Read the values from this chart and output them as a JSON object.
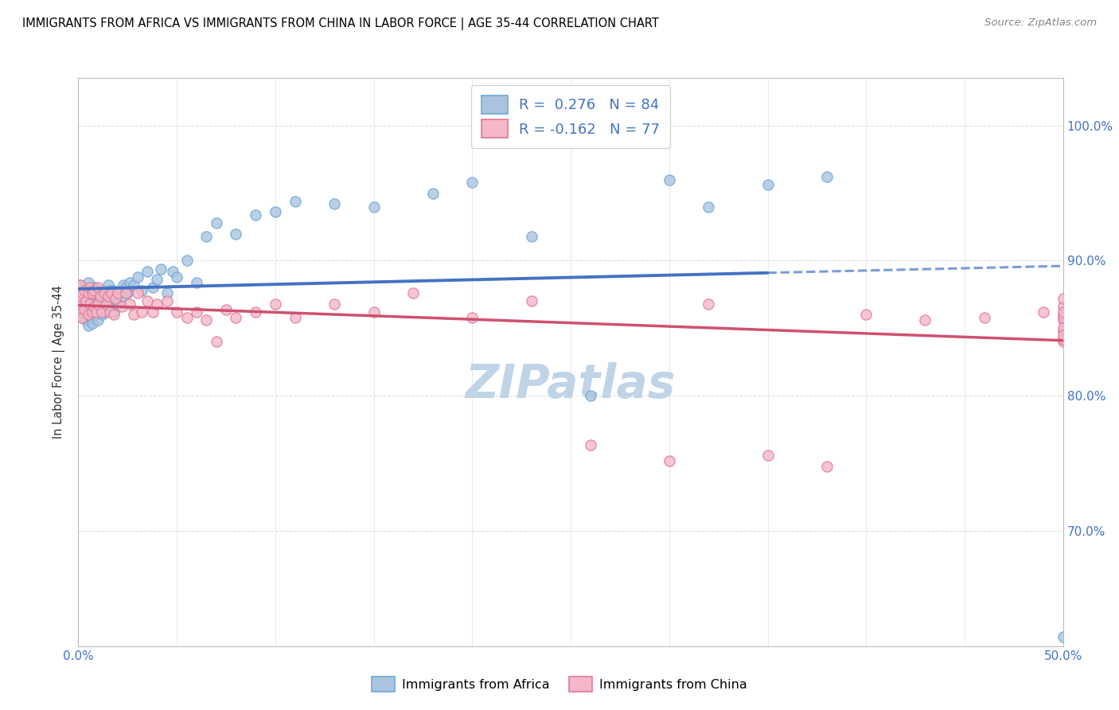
{
  "title": "IMMIGRANTS FROM AFRICA VS IMMIGRANTS FROM CHINA IN LABOR FORCE | AGE 35-44 CORRELATION CHART",
  "source_text": "Source: ZipAtlas.com",
  "ylabel": "In Labor Force | Age 35-44",
  "x_min": 0.0,
  "x_max": 0.5,
  "y_min": 0.615,
  "y_max": 1.035,
  "x_ticks": [
    0.0,
    0.05,
    0.1,
    0.15,
    0.2,
    0.25,
    0.3,
    0.35,
    0.4,
    0.45,
    0.5
  ],
  "y_ticks": [
    0.7,
    0.8,
    0.9,
    1.0
  ],
  "y_tick_labels": [
    "70.0%",
    "80.0%",
    "90.0%",
    "100.0%"
  ],
  "africa_color": "#aac4e0",
  "africa_edge_color": "#6fa8d4",
  "china_color": "#f4b8c8",
  "china_edge_color": "#e07898",
  "africa_line_color": "#4472c4",
  "china_line_color": "#d05070",
  "africa_R": 0.276,
  "africa_N": 84,
  "china_R": -0.162,
  "china_N": 77,
  "tick_label_color": "#4472c4",
  "watermark_text": "ZIPatlas",
  "watermark_color": "#c0d4e8",
  "grid_color": "#e0e0e0",
  "africa_scatter_x": [
    0.001,
    0.001,
    0.001,
    0.001,
    0.001,
    0.002,
    0.002,
    0.002,
    0.002,
    0.003,
    0.003,
    0.004,
    0.004,
    0.004,
    0.005,
    0.005,
    0.005,
    0.005,
    0.006,
    0.006,
    0.006,
    0.007,
    0.007,
    0.007,
    0.008,
    0.008,
    0.008,
    0.009,
    0.009,
    0.01,
    0.01,
    0.01,
    0.011,
    0.011,
    0.012,
    0.012,
    0.013,
    0.013,
    0.014,
    0.014,
    0.015,
    0.015,
    0.016,
    0.016,
    0.017,
    0.018,
    0.018,
    0.019,
    0.02,
    0.021,
    0.022,
    0.023,
    0.024,
    0.025,
    0.026,
    0.028,
    0.03,
    0.032,
    0.035,
    0.038,
    0.04,
    0.042,
    0.045,
    0.048,
    0.05,
    0.055,
    0.06,
    0.065,
    0.07,
    0.08,
    0.09,
    0.1,
    0.11,
    0.13,
    0.15,
    0.18,
    0.2,
    0.23,
    0.26,
    0.3,
    0.32,
    0.35,
    0.38,
    0.5
  ],
  "africa_scatter_y": [
    0.862,
    0.866,
    0.872,
    0.876,
    0.882,
    0.858,
    0.864,
    0.872,
    0.88,
    0.86,
    0.868,
    0.856,
    0.866,
    0.878,
    0.852,
    0.862,
    0.874,
    0.884,
    0.858,
    0.868,
    0.878,
    0.854,
    0.864,
    0.876,
    0.86,
    0.868,
    0.88,
    0.862,
    0.874,
    0.856,
    0.866,
    0.878,
    0.862,
    0.872,
    0.86,
    0.874,
    0.864,
    0.876,
    0.862,
    0.878,
    0.866,
    0.882,
    0.864,
    0.878,
    0.87,
    0.862,
    0.878,
    0.872,
    0.868,
    0.876,
    0.874,
    0.882,
    0.88,
    0.876,
    0.884,
    0.882,
    0.888,
    0.878,
    0.892,
    0.88,
    0.886,
    0.894,
    0.876,
    0.892,
    0.888,
    0.9,
    0.884,
    0.918,
    0.928,
    0.92,
    0.934,
    0.936,
    0.944,
    0.942,
    0.94,
    0.95,
    0.958,
    0.918,
    0.8,
    0.96,
    0.94,
    0.956,
    0.962,
    0.622
  ],
  "china_scatter_x": [
    0.001,
    0.001,
    0.001,
    0.001,
    0.002,
    0.002,
    0.003,
    0.003,
    0.004,
    0.005,
    0.005,
    0.006,
    0.006,
    0.007,
    0.007,
    0.008,
    0.008,
    0.009,
    0.01,
    0.01,
    0.011,
    0.012,
    0.013,
    0.014,
    0.015,
    0.016,
    0.017,
    0.018,
    0.019,
    0.02,
    0.022,
    0.024,
    0.026,
    0.028,
    0.03,
    0.032,
    0.035,
    0.038,
    0.04,
    0.045,
    0.05,
    0.055,
    0.06,
    0.065,
    0.07,
    0.075,
    0.08,
    0.09,
    0.1,
    0.11,
    0.13,
    0.15,
    0.17,
    0.2,
    0.23,
    0.26,
    0.3,
    0.32,
    0.35,
    0.38,
    0.4,
    0.43,
    0.46,
    0.49,
    0.5,
    0.5,
    0.5,
    0.5,
    0.5,
    0.5,
    0.5,
    0.5,
    0.5,
    0.5,
    0.5,
    0.5,
    0.5
  ],
  "china_scatter_y": [
    0.862,
    0.868,
    0.874,
    0.882,
    0.858,
    0.876,
    0.864,
    0.878,
    0.87,
    0.86,
    0.876,
    0.868,
    0.88,
    0.862,
    0.876,
    0.866,
    0.878,
    0.862,
    0.868,
    0.88,
    0.874,
    0.862,
    0.876,
    0.868,
    0.874,
    0.862,
    0.876,
    0.86,
    0.872,
    0.876,
    0.866,
    0.876,
    0.868,
    0.86,
    0.876,
    0.862,
    0.87,
    0.862,
    0.868,
    0.87,
    0.862,
    0.858,
    0.862,
    0.856,
    0.84,
    0.864,
    0.858,
    0.862,
    0.868,
    0.858,
    0.868,
    0.862,
    0.876,
    0.858,
    0.87,
    0.764,
    0.752,
    0.868,
    0.756,
    0.748,
    0.86,
    0.856,
    0.858,
    0.862,
    0.858,
    0.866,
    0.872,
    0.842,
    0.84,
    0.856,
    0.848,
    0.86,
    0.858,
    0.842,
    0.85,
    0.862,
    0.845
  ]
}
